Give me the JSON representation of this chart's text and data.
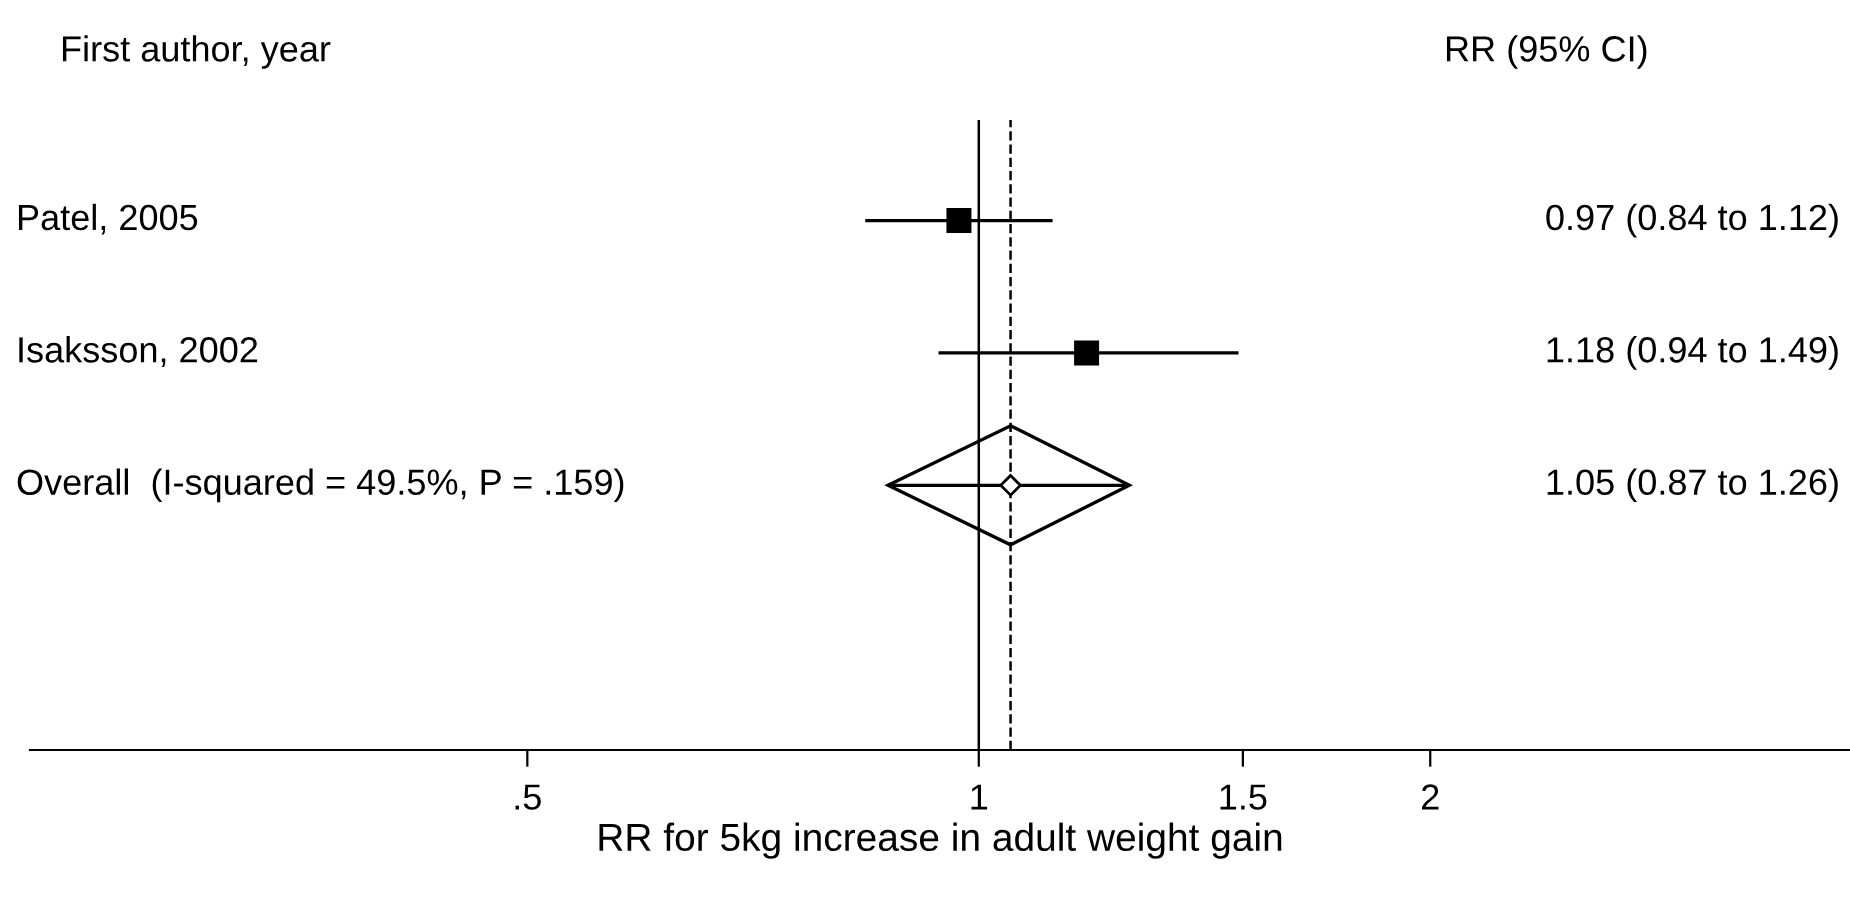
{
  "chart_data": {
    "type": "scatter",
    "orientation": "horizontal",
    "categories": [
      "Patel, 2005",
      "Isaksson, 2002",
      "Overall  (I-squared = 49.5%, P = .159)"
    ],
    "series": [
      {
        "marker": "square",
        "color": "#000000",
        "values": [
          0.97,
          1.18,
          null
        ],
        "errors": [
          [
            0.84,
            1.12
          ],
          [
            0.94,
            1.49
          ],
          null
        ]
      },
      {
        "marker": "diamond",
        "color": "#000000",
        "values": [
          null,
          null,
          1.05
        ],
        "errors": [
          null,
          null,
          [
            0.87,
            1.26
          ]
        ]
      }
    ],
    "value_labels": [
      "0.97 (0.84 to 1.12)",
      "1.18 (0.94 to 1.49)",
      "1.05 (0.87 to 1.26)"
    ],
    "xlabel": "RR for 5kg increase in adult weight gain",
    "log": "x",
    "xlim": [
      0.233,
      3.81
    ],
    "xticks": [
      {
        "value": 0.5,
        "label": ".5"
      },
      1,
      1.5,
      2
    ],
    "ref_lines": [
      {
        "axis": "x",
        "value": 1,
        "line_style": "solid",
        "color": "#000000"
      },
      {
        "axis": "x",
        "value": 1.05,
        "line_style": "dashed",
        "color": "#000000"
      }
    ],
    "annotations": [
      "First author, year",
      "RR (95% CI)"
    ],
    "grid": false,
    "legend": false
  }
}
